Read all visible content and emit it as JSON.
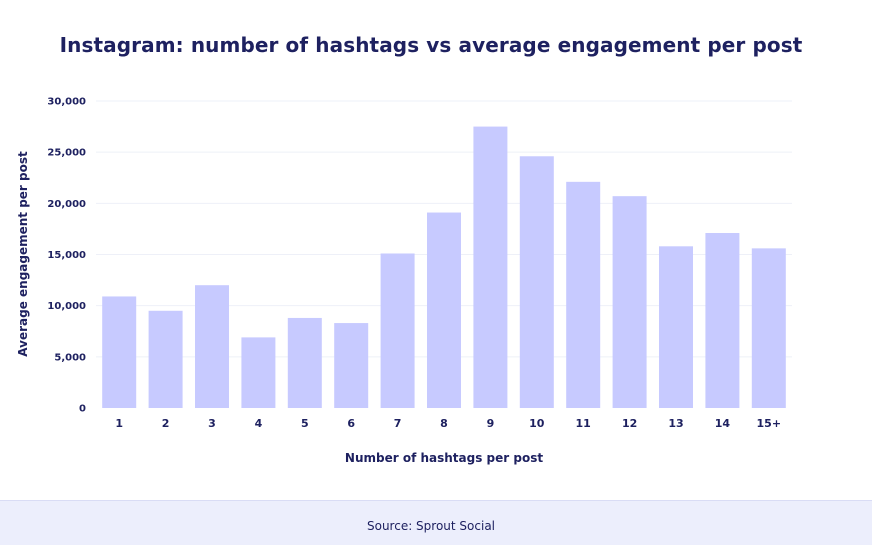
{
  "chart_data": {
    "type": "bar",
    "title": "Instagram: number of hashtags vs average engagement per post",
    "xlabel": "Number of hashtags per post",
    "ylabel": "Average engagement per post",
    "categories": [
      "1",
      "2",
      "3",
      "4",
      "5",
      "6",
      "7",
      "8",
      "9",
      "10",
      "11",
      "12",
      "13",
      "14",
      "15+"
    ],
    "values": [
      10900,
      9500,
      12000,
      6900,
      8800,
      8300,
      15100,
      19100,
      27500,
      24600,
      22100,
      20700,
      15800,
      17100,
      15600
    ],
    "ylim": [
      0,
      30000
    ],
    "yticks": [
      "0",
      "5,000",
      "10,000",
      "15,000",
      "20,000",
      "25,000",
      "30,000"
    ],
    "grid": true,
    "legend": "none",
    "bar_color": "#c7caff"
  },
  "footer": {
    "source": "Source: Sprout Social"
  },
  "colors": {
    "text": "#1e2160",
    "footer_bg": "#eceefc",
    "grid": "#eef0f8"
  }
}
